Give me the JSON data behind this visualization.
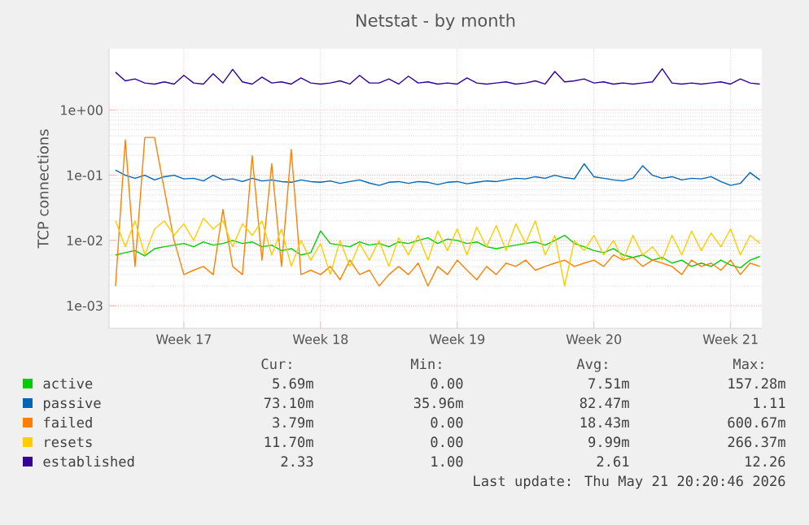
{
  "chart_data": {
    "type": "line",
    "title": "Netstat - by month",
    "ylabel": "TCP connections",
    "log": "y",
    "grid": true,
    "legend": "bottom",
    "ylim": [
      0.00045,
      8.7
    ],
    "yticks": [
      {
        "value": 0.001,
        "label": "1e-03"
      },
      {
        "value": 0.01,
        "label": "1e-02"
      },
      {
        "value": 0.1,
        "label": "1e-01"
      },
      {
        "value": 1,
        "label": "1e+00"
      }
    ],
    "categories": [
      null,
      null,
      null,
      null,
      null,
      null,
      null,
      "Week 17",
      null,
      null,
      null,
      null,
      null,
      null,
      null,
      null,
      null,
      null,
      null,
      null,
      null,
      "Week 18",
      null,
      null,
      null,
      null,
      null,
      null,
      null,
      null,
      null,
      null,
      null,
      null,
      null,
      "Week 19",
      null,
      null,
      null,
      null,
      null,
      null,
      null,
      null,
      null,
      null,
      null,
      null,
      null,
      "Week 20",
      null,
      null,
      null,
      null,
      null,
      null,
      null,
      null,
      null,
      null,
      null,
      null,
      null,
      "Week 21",
      null,
      null,
      null
    ],
    "series": [
      {
        "name": "active",
        "color": "#00cc00",
        "values": [
          0.006,
          0.0065,
          0.007,
          0.0058,
          0.0075,
          0.008,
          0.0085,
          0.009,
          0.008,
          0.0095,
          0.0085,
          0.009,
          0.01,
          0.009,
          0.0095,
          0.008,
          0.0085,
          0.007,
          0.0075,
          0.006,
          0.0065,
          0.014,
          0.009,
          0.0085,
          0.008,
          0.0095,
          0.0085,
          0.009,
          0.008,
          0.0095,
          0.009,
          0.01,
          0.011,
          0.009,
          0.0105,
          0.01,
          0.009,
          0.0095,
          0.008,
          0.0075,
          0.008,
          0.0085,
          0.009,
          0.0095,
          0.0085,
          0.01,
          0.012,
          0.009,
          0.008,
          0.007,
          0.0065,
          0.0075,
          0.006,
          0.0055,
          0.006,
          0.005,
          0.0055,
          0.0045,
          0.005,
          0.004,
          0.0045,
          0.004,
          0.005,
          0.0042,
          0.0038,
          0.005,
          0.0057
        ]
      },
      {
        "name": "passive",
        "color": "#0066b3",
        "values": [
          0.12,
          0.1,
          0.09,
          0.1,
          0.085,
          0.095,
          0.1,
          0.088,
          0.09,
          0.082,
          0.1,
          0.085,
          0.088,
          0.08,
          0.09,
          0.082,
          0.085,
          0.08,
          0.078,
          0.085,
          0.08,
          0.078,
          0.082,
          0.075,
          0.08,
          0.085,
          0.076,
          0.07,
          0.078,
          0.08,
          0.075,
          0.08,
          0.078,
          0.072,
          0.078,
          0.08,
          0.074,
          0.078,
          0.082,
          0.08,
          0.085,
          0.09,
          0.088,
          0.095,
          0.09,
          0.1,
          0.092,
          0.088,
          0.15,
          0.095,
          0.09,
          0.085,
          0.082,
          0.09,
          0.14,
          0.1,
          0.09,
          0.095,
          0.085,
          0.09,
          0.088,
          0.095,
          0.08,
          0.07,
          0.075,
          0.11,
          0.085
        ]
      },
      {
        "name": "failed",
        "color": "#ff8000",
        "values": [
          0.002,
          0.35,
          0.004,
          0.38,
          0.38,
          0.06,
          0.01,
          0.003,
          0.0035,
          0.004,
          0.003,
          0.03,
          0.004,
          0.003,
          0.2,
          0.005,
          0.15,
          0.004,
          0.25,
          0.003,
          0.0035,
          0.003,
          0.004,
          0.0025,
          0.005,
          0.003,
          0.0035,
          0.002,
          0.003,
          0.004,
          0.003,
          0.0045,
          0.002,
          0.004,
          0.003,
          0.005,
          0.0035,
          0.0025,
          0.004,
          0.003,
          0.0045,
          0.004,
          0.005,
          0.0035,
          0.004,
          0.0045,
          0.005,
          0.004,
          0.0045,
          0.005,
          0.004,
          0.006,
          0.005,
          0.0055,
          0.004,
          0.005,
          0.0045,
          0.004,
          0.003,
          0.005,
          0.004,
          0.0045,
          0.0035,
          0.005,
          0.003,
          0.0045,
          0.004
        ]
      },
      {
        "name": "resets",
        "color": "#ffcc00",
        "values": [
          0.02,
          0.008,
          0.02,
          0.006,
          0.015,
          0.02,
          0.012,
          0.018,
          0.01,
          0.022,
          0.015,
          0.02,
          0.008,
          0.018,
          0.012,
          0.02,
          0.006,
          0.015,
          0.004,
          0.01,
          0.005,
          0.009,
          0.003,
          0.01,
          0.004,
          0.009,
          0.005,
          0.01,
          0.004,
          0.011,
          0.006,
          0.012,
          0.005,
          0.014,
          0.007,
          0.015,
          0.006,
          0.016,
          0.008,
          0.017,
          0.007,
          0.018,
          0.009,
          0.02,
          0.006,
          0.012,
          0.002,
          0.01,
          0.007,
          0.012,
          0.006,
          0.01,
          0.005,
          0.012,
          0.006,
          0.008,
          0.005,
          0.012,
          0.006,
          0.014,
          0.007,
          0.013,
          0.008,
          0.015,
          0.006,
          0.012,
          0.009
        ]
      },
      {
        "name": "established",
        "color": "#330099",
        "values": [
          3.8,
          2.8,
          3.0,
          2.6,
          2.5,
          2.7,
          2.5,
          3.4,
          2.6,
          2.5,
          3.6,
          2.6,
          4.2,
          2.7,
          2.5,
          3.2,
          2.6,
          2.7,
          2.5,
          3.1,
          2.6,
          2.5,
          2.6,
          2.8,
          2.5,
          3.4,
          2.6,
          2.6,
          3.0,
          2.5,
          3.3,
          2.6,
          2.7,
          2.5,
          2.6,
          2.5,
          3.1,
          2.6,
          2.5,
          2.6,
          2.7,
          2.5,
          2.6,
          2.8,
          2.5,
          3.9,
          2.7,
          2.8,
          3.0,
          2.6,
          2.7,
          2.5,
          2.6,
          2.5,
          2.6,
          2.7,
          4.3,
          2.6,
          2.5,
          2.6,
          2.5,
          2.6,
          2.7,
          2.5,
          3.0,
          2.6,
          2.5
        ]
      }
    ],
    "annotations": [
      "Cur:",
      "Min:",
      "Avg:",
      "Max:",
      "5.69m",
      "0.00",
      "7.51m",
      "157.28m",
      "73.10m",
      "35.96m",
      "82.47m",
      "1.11",
      "3.79m",
      "0.00",
      "18.43m",
      "600.67m",
      "11.70m",
      "0.00",
      "9.99m",
      "266.37m",
      "2.33",
      "1.00",
      "2.61",
      "12.26",
      "Last update: Thu May 21 20:20:46 2026"
    ]
  }
}
